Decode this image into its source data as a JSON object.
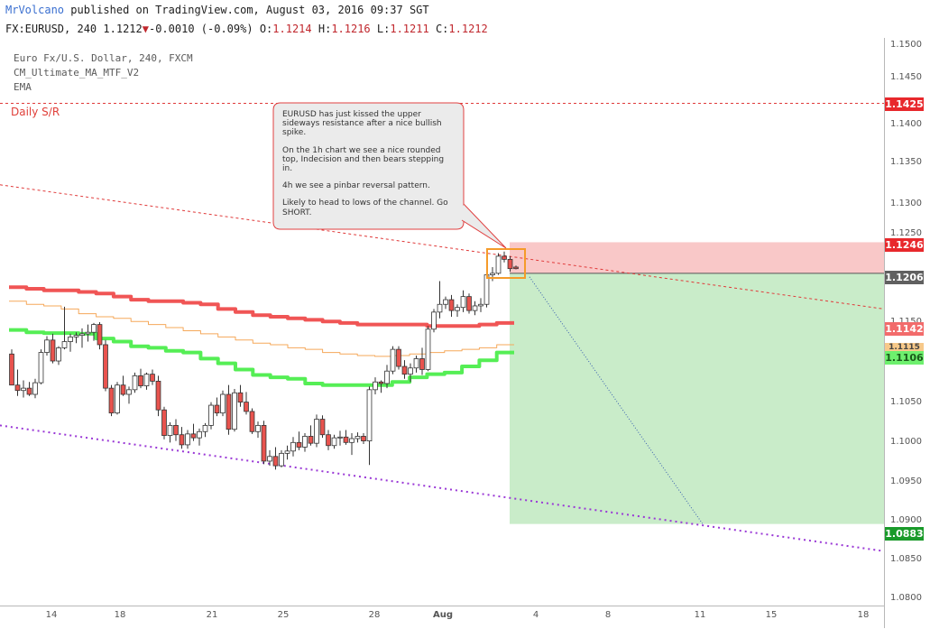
{
  "header": {
    "user": "MrVolcano",
    "published": "published on TradingView.com, August 03, 2016 09:37 SGT"
  },
  "quote": {
    "symbol": "FX:EURUSD, 240",
    "last": "1.1212",
    "arrow": "▼",
    "change": "-0.0010 (-0.09%)",
    "o_label": "O:",
    "o": "1.1214",
    "h_label": "H:",
    "h": "1.1216",
    "l_label": "L:",
    "l": "1.1211",
    "c_label": "C:",
    "c": "1.1212"
  },
  "legend": {
    "instrument": "Euro Fx/U.S. Dollar, 240, FXCM",
    "indicator1": "CM_Ultimate_MA_MTF_V2",
    "indicator2": "EMA"
  },
  "annotation": {
    "daily_sr": "Daily S/R",
    "note_lines": [
      "EURUSD has just kissed the upper sideways resistance after a nice bullish spike.",
      "On the 1h chart we see a nice rounded top, Indecision and then bears stepping in.",
      "4h we see a pinbar reversal pattern.",
      "Likely to head to lows of the channel. Go SHORT."
    ]
  },
  "price_tags": {
    "resistance": "1.1425",
    "stop": "1.1246",
    "entry": "1.1206",
    "ma_red": "1.1142",
    "ema": "1.1115",
    "ma_green": "1.1106",
    "target": "1.0883"
  },
  "colors": {
    "bull": "#ffffff",
    "bear": "#e8534e",
    "ma_red": "#f05555",
    "ma_green": "#55ee55",
    "ema": "#f5a85a",
    "stop_zone": "#f9c8c8",
    "target_zone": "#c9ecc9",
    "channel_top": "#e03a3a",
    "channel_bottom": "#9a38d6",
    "box": "#f59b2a"
  },
  "y_axis_ticks": [
    "1.1500",
    "1.1450",
    "1.1400",
    "1.1350",
    "1.1300",
    "1.1250",
    "1.1150",
    "1.1050",
    "1.1000",
    "1.0950",
    "1.0900",
    "1.0850",
    "1.0800"
  ],
  "x_axis_ticks": [
    "14",
    "18",
    "21",
    "25",
    "28",
    "Aug",
    "4",
    "8",
    "11",
    "15",
    "18"
  ],
  "chart_data": {
    "type": "candlestick",
    "instrument": "EURUSD",
    "timeframe": "240",
    "ylim": [
      1.078,
      1.152
    ],
    "x_ticks": [
      "14",
      "18",
      "21",
      "25",
      "28",
      "Aug",
      "4",
      "8",
      "11",
      "15",
      "18"
    ],
    "ohlc": [
      [
        1.1102,
        1.1108,
        1.1062,
        1.1062
      ],
      [
        1.1062,
        1.1082,
        1.1048,
        1.1055
      ],
      [
        1.1055,
        1.1068,
        1.1046,
        1.1058
      ],
      [
        1.1058,
        1.1066,
        1.1048,
        1.105
      ],
      [
        1.105,
        1.107,
        1.1045,
        1.1065
      ],
      [
        1.1065,
        1.1108,
        1.1063,
        1.1104
      ],
      [
        1.1104,
        1.1125,
        1.11,
        1.112
      ],
      [
        1.112,
        1.1128,
        1.109,
        1.1093
      ],
      [
        1.1093,
        1.1112,
        1.1088,
        1.111
      ],
      [
        1.111,
        1.1163,
        1.1108,
        1.1118
      ],
      [
        1.1118,
        1.1128,
        1.1105,
        1.1124
      ],
      [
        1.1124,
        1.113,
        1.1116,
        1.1126
      ],
      [
        1.1126,
        1.1135,
        1.111,
        1.1128
      ],
      [
        1.1128,
        1.114,
        1.1118,
        1.113
      ],
      [
        1.113,
        1.1142,
        1.1119,
        1.114
      ],
      [
        1.114,
        1.1143,
        1.1108,
        1.1114
      ],
      [
        1.1114,
        1.112,
        1.1054,
        1.1058
      ],
      [
        1.1058,
        1.1062,
        1.1022,
        1.1026
      ],
      [
        1.1026,
        1.1066,
        1.1024,
        1.1062
      ],
      [
        1.1062,
        1.1074,
        1.1048,
        1.105
      ],
      [
        1.105,
        1.106,
        1.1038,
        1.1056
      ],
      [
        1.1056,
        1.1078,
        1.1052,
        1.1074
      ],
      [
        1.1074,
        1.1083,
        1.1058,
        1.1061
      ],
      [
        1.1061,
        1.1078,
        1.1056,
        1.1076
      ],
      [
        1.1076,
        1.1082,
        1.1062,
        1.1067
      ],
      [
        1.1067,
        1.1074,
        1.1022,
        1.103
      ],
      [
        1.103,
        1.1034,
        1.0992,
        1.0997
      ],
      [
        1.0997,
        1.1014,
        1.0988,
        1.101
      ],
      [
        1.101,
        1.1018,
        1.099,
        1.0998
      ],
      [
        1.0998,
        1.1008,
        1.098,
        1.0985
      ],
      [
        1.0985,
        1.1004,
        1.098,
        1.0999
      ],
      [
        1.0999,
        1.1012,
        1.099,
        1.0994
      ],
      [
        1.0994,
        1.1006,
        1.0984,
        1.1002
      ],
      [
        1.1002,
        1.1013,
        1.0995,
        1.101
      ],
      [
        1.101,
        1.104,
        1.1005,
        1.1036
      ],
      [
        1.1036,
        1.1046,
        1.1022,
        1.1026
      ],
      [
        1.1026,
        1.1055,
        1.1022,
        1.105
      ],
      [
        1.105,
        1.1062,
        1.0998,
        1.1005
      ],
      [
        1.1005,
        1.1057,
        1.1002,
        1.1052
      ],
      [
        1.1052,
        1.1062,
        1.1034,
        1.104
      ],
      [
        1.104,
        1.1053,
        1.1024,
        1.1028
      ],
      [
        1.1028,
        1.1032,
        1.0999,
        1.1002
      ],
      [
        1.1002,
        1.1015,
        1.0994,
        1.101
      ],
      [
        1.101,
        1.1016,
        1.096,
        1.0964
      ],
      [
        1.0964,
        1.0978,
        1.0958,
        1.097
      ],
      [
        1.097,
        1.0982,
        1.0953,
        1.0958
      ],
      [
        1.0958,
        1.0978,
        1.0956,
        1.0974
      ],
      [
        1.0974,
        1.0984,
        1.0966,
        1.0977
      ],
      [
        1.0977,
        1.0995,
        1.097,
        1.0988
      ],
      [
        1.0988,
        1.1002,
        1.0978,
        1.0982
      ],
      [
        1.0982,
        1.1,
        1.0976,
        1.0996
      ],
      [
        1.0996,
        1.101,
        1.0984,
        1.0987
      ],
      [
        1.0987,
        1.1024,
        1.0982,
        1.1018
      ],
      [
        1.1018,
        1.1023,
        1.0994,
        1.0998
      ],
      [
        1.0998,
        1.1004,
        1.0978,
        1.0984
      ],
      [
        1.0984,
        1.0998,
        1.098,
        1.0994
      ],
      [
        1.0994,
        1.1003,
        1.0984,
        1.0995
      ],
      [
        1.0995,
        1.1004,
        1.0985,
        1.0988
      ],
      [
        1.0988,
        1.1,
        1.0972,
        1.0993
      ],
      [
        1.0993,
        1.1001,
        1.0988,
        1.0996
      ],
      [
        1.0996,
        1.1,
        1.0986,
        1.099
      ],
      [
        1.099,
        1.106,
        1.0959,
        1.1056
      ],
      [
        1.1056,
        1.1072,
        1.105,
        1.1066
      ],
      [
        1.1066,
        1.1068,
        1.1052,
        1.1064
      ],
      [
        1.1064,
        1.1088,
        1.1058,
        1.108
      ],
      [
        1.108,
        1.1112,
        1.1076,
        1.1108
      ],
      [
        1.1108,
        1.1112,
        1.1082,
        1.1086
      ],
      [
        1.1086,
        1.1094,
        1.107,
        1.1076
      ],
      [
        1.1076,
        1.109,
        1.1066,
        1.1084
      ],
      [
        1.1084,
        1.11,
        1.1078,
        1.1096
      ],
      [
        1.1096,
        1.111,
        1.1075,
        1.1082
      ],
      [
        1.1082,
        1.1138,
        1.108,
        1.1134
      ],
      [
        1.1134,
        1.116,
        1.113,
        1.1156
      ],
      [
        1.1156,
        1.1196,
        1.1148,
        1.1166
      ],
      [
        1.1166,
        1.1176,
        1.116,
        1.1172
      ],
      [
        1.1172,
        1.1178,
        1.115,
        1.1158
      ],
      [
        1.1158,
        1.1166,
        1.115,
        1.1162
      ],
      [
        1.1162,
        1.1184,
        1.1156,
        1.1176
      ],
      [
        1.1176,
        1.118,
        1.1154,
        1.1158
      ],
      [
        1.1158,
        1.117,
        1.1152,
        1.1164
      ],
      [
        1.1164,
        1.1174,
        1.1156,
        1.1166
      ],
      [
        1.1166,
        1.121,
        1.1162,
        1.1204
      ],
      [
        1.1204,
        1.1214,
        1.1196,
        1.1206
      ],
      [
        1.1206,
        1.1232,
        1.1204,
        1.1228
      ],
      [
        1.1228,
        1.1234,
        1.122,
        1.1224
      ],
      [
        1.1224,
        1.1228,
        1.1208,
        1.1212
      ],
      [
        1.1214,
        1.1216,
        1.1211,
        1.1212
      ]
    ],
    "series": [
      {
        "name": "CM_Ultimate_MA_MTF_V2",
        "color": "#f05555",
        "values": [
          1.1188,
          1.1186,
          1.1184,
          1.1184,
          1.1182,
          1.118,
          1.1176,
          1.1172,
          1.117,
          1.117,
          1.1168,
          1.1166,
          1.116,
          1.1156,
          1.1152,
          1.115,
          1.1148,
          1.1146,
          1.1144,
          1.1142,
          1.114,
          1.114,
          1.114,
          1.114,
          1.1138,
          1.1138,
          1.1138,
          1.114,
          1.1142
        ]
      },
      {
        "name": "CM_Ultimate_MA_MTF_V2",
        "color": "#55ee55",
        "values": [
          1.1133,
          1.113,
          1.1129,
          1.1129,
          1.1128,
          1.1122,
          1.1118,
          1.1112,
          1.111,
          1.1106,
          1.1104,
          1.1096,
          1.109,
          1.1082,
          1.1075,
          1.1072,
          1.107,
          1.1064,
          1.1062,
          1.1062,
          1.1062,
          1.1062,
          1.1066,
          1.1072,
          1.1076,
          1.1078,
          1.1086,
          1.1094,
          1.1104
        ]
      },
      {
        "name": "EMA",
        "color": "#f5a85a",
        "values": [
          1.117,
          1.1166,
          1.1164,
          1.116,
          1.1154,
          1.115,
          1.1148,
          1.1144,
          1.114,
          1.1136,
          1.1132,
          1.1128,
          1.1124,
          1.112,
          1.1116,
          1.1114,
          1.111,
          1.1108,
          1.1104,
          1.1102,
          1.11,
          1.1099,
          1.11,
          1.1102,
          1.1104,
          1.1106,
          1.1108,
          1.111,
          1.1114
        ]
      }
    ],
    "levels": {
      "daily_sr": 1.1425,
      "stop": 1.1246,
      "entry": 1.1206,
      "target": 1.0883
    },
    "trend_lines": {
      "upper_channel": [
        [
          0,
          1.132
        ],
        [
          1,
          1.116
        ]
      ],
      "lower_channel": [
        [
          0,
          1.101
        ],
        [
          1,
          1.0848
        ]
      ],
      "projection": [
        [
          0.6,
          1.1206
        ],
        [
          0.79,
          1.0883
        ]
      ]
    }
  }
}
